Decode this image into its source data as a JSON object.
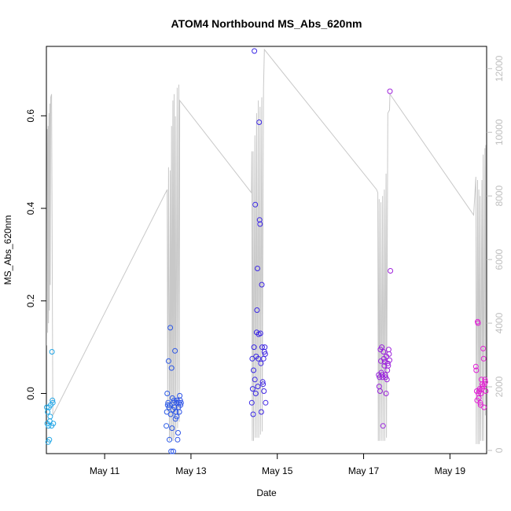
{
  "chart_data": {
    "type": "scatter",
    "title": "ATOM4 Northbound MS_Abs_620nm",
    "xlabel": "Date",
    "ylabel": "MS_Abs_620nm",
    "x_unit": "day of May",
    "xlim": [
      9.65,
      19.85
    ],
    "ylim": [
      -0.13,
      0.75
    ],
    "x_ticks": [
      {
        "value": 11,
        "label": "May 11"
      },
      {
        "value": 13,
        "label": "May 13"
      },
      {
        "value": 15,
        "label": "May 15"
      },
      {
        "value": 17,
        "label": "May 17"
      },
      {
        "value": 19,
        "label": "May 19"
      }
    ],
    "y_ticks": [
      0.0,
      0.2,
      0.4,
      0.6
    ],
    "y2_ticks": [
      0,
      2000,
      4000,
      6000,
      8000,
      10000,
      12000
    ],
    "y2_range": [
      -100,
      12700
    ],
    "grid": false,
    "legend": "none",
    "point_color_start": "#1fa8e6",
    "point_color_end": "#e61fd4",
    "line_color": "#c8c8c8",
    "series": [
      {
        "values": [
          [
            9.66,
            -0.03
          ],
          [
            9.67,
            -0.065
          ],
          [
            9.68,
            -0.04
          ],
          [
            9.69,
            -0.105
          ],
          [
            9.7,
            -0.07
          ],
          [
            9.71,
            -0.03
          ],
          [
            9.72,
            -0.1
          ],
          [
            9.73,
            -0.06
          ],
          [
            9.74,
            -0.05
          ],
          [
            9.75,
            -0.025
          ],
          [
            9.77,
            -0.07
          ],
          [
            9.79,
            -0.015
          ],
          [
            9.8,
            -0.02
          ],
          [
            9.81,
            -0.065
          ],
          [
            9.78,
            0.09
          ],
          [
            12.43,
            -0.07
          ],
          [
            12.44,
            -0.04
          ],
          [
            12.45,
            0.0
          ],
          [
            12.46,
            -0.025
          ],
          [
            12.47,
            -0.02
          ],
          [
            12.48,
            0.07
          ],
          [
            12.49,
            -0.03
          ],
          [
            12.5,
            -0.1
          ],
          [
            12.51,
            -0.025
          ],
          [
            12.52,
            0.142
          ],
          [
            12.53,
            -0.045
          ],
          [
            12.54,
            -0.125
          ],
          [
            12.55,
            0.055
          ],
          [
            12.56,
            -0.075
          ],
          [
            12.57,
            -0.01
          ],
          [
            12.58,
            -0.035
          ],
          [
            12.59,
            -0.125
          ],
          [
            12.6,
            -0.02
          ],
          [
            12.61,
            -0.015
          ],
          [
            12.62,
            -0.03
          ],
          [
            12.63,
            0.092
          ],
          [
            12.64,
            -0.055
          ],
          [
            12.65,
            -0.04
          ],
          [
            12.66,
            -0.02
          ],
          [
            12.67,
            -0.05
          ],
          [
            12.68,
            -0.015
          ],
          [
            12.69,
            -0.1
          ],
          [
            12.7,
            -0.085
          ],
          [
            12.71,
            -0.03
          ],
          [
            12.72,
            -0.02
          ],
          [
            12.73,
            -0.04
          ],
          [
            12.74,
            -0.005
          ],
          [
            12.75,
            -0.015
          ],
          [
            12.76,
            -0.025
          ],
          [
            12.77,
            -0.02
          ],
          [
            14.41,
            -0.02
          ],
          [
            14.42,
            0.075
          ],
          [
            14.43,
            0.01
          ],
          [
            14.44,
            -0.045
          ],
          [
            14.45,
            0.05
          ],
          [
            14.46,
            0.1
          ],
          [
            14.47,
            0.74
          ],
          [
            14.48,
            0.03
          ],
          [
            14.49,
            0.408
          ],
          [
            14.5,
            0.0
          ],
          [
            14.51,
            0.08
          ],
          [
            14.52,
            0.132
          ],
          [
            14.53,
            0.18
          ],
          [
            14.54,
            0.27
          ],
          [
            14.55,
            0.015
          ],
          [
            14.56,
            0.075
          ],
          [
            14.57,
            0.128
          ],
          [
            14.58,
            0.586
          ],
          [
            14.59,
            0.375
          ],
          [
            14.6,
            0.366
          ],
          [
            14.61,
            0.13
          ],
          [
            14.62,
            0.065
          ],
          [
            14.63,
            -0.04
          ],
          [
            14.64,
            0.235
          ],
          [
            14.65,
            0.1
          ],
          [
            14.66,
            0.025
          ],
          [
            14.67,
            0.02
          ],
          [
            14.68,
            0.075
          ],
          [
            14.69,
            0.005
          ],
          [
            14.7,
            0.09
          ],
          [
            14.71,
            0.1
          ],
          [
            14.72,
            0.085
          ],
          [
            14.73,
            -0.02
          ],
          [
            17.35,
            0.04
          ],
          [
            17.36,
            0.015
          ],
          [
            17.37,
            0.035
          ],
          [
            17.38,
            0.005
          ],
          [
            17.39,
            0.095
          ],
          [
            17.4,
            0.07
          ],
          [
            17.41,
            0.045
          ],
          [
            17.42,
            0.1
          ],
          [
            17.43,
            0.04
          ],
          [
            17.44,
            0.035
          ],
          [
            17.45,
            -0.07
          ],
          [
            17.46,
            0.09
          ],
          [
            17.47,
            0.075
          ],
          [
            17.48,
            0.06
          ],
          [
            17.49,
            0.068
          ],
          [
            17.5,
            0.04
          ],
          [
            17.51,
            0.035
          ],
          [
            17.52,
            0.0
          ],
          [
            17.53,
            0.08
          ],
          [
            17.54,
            0.03
          ],
          [
            17.55,
            0.05
          ],
          [
            17.56,
            0.065
          ],
          [
            17.57,
            0.06
          ],
          [
            17.58,
            0.095
          ],
          [
            17.59,
            0.085
          ],
          [
            17.6,
            0.072
          ],
          [
            17.61,
            0.653
          ],
          [
            17.62,
            0.265
          ],
          [
            19.6,
            0.058
          ],
          [
            19.61,
            0.05
          ],
          [
            19.62,
            0.005
          ],
          [
            19.63,
            -0.015
          ],
          [
            19.64,
            0.155
          ],
          [
            19.65,
            0.152
          ],
          [
            19.66,
            0.0
          ],
          [
            19.67,
            -0.01
          ],
          [
            19.68,
            0.005
          ],
          [
            19.69,
            0.01
          ],
          [
            19.7,
            -0.02
          ],
          [
            19.71,
            -0.025
          ],
          [
            19.72,
            0.0
          ],
          [
            19.73,
            0.03
          ],
          [
            19.74,
            0.01
          ],
          [
            19.75,
            0.02
          ],
          [
            19.76,
            0.015
          ],
          [
            19.77,
            0.097
          ],
          [
            19.78,
            0.075
          ],
          [
            19.79,
            -0.03
          ],
          [
            19.8,
            0.02
          ],
          [
            19.81,
            0.03
          ],
          [
            19.82,
            0.025
          ],
          [
            19.83,
            0.005
          ]
        ]
      },
      {
        "axis": "right",
        "values": [
          [
            9.66,
            3300
          ],
          [
            9.67,
            10100
          ],
          [
            9.68,
            3700
          ],
          [
            9.69,
            10200
          ],
          [
            9.7,
            4000
          ],
          [
            9.71,
            10600
          ],
          [
            9.72,
            4400
          ],
          [
            9.73,
            10900
          ],
          [
            9.74,
            5200
          ],
          [
            9.75,
            11100
          ],
          [
            9.77,
            11200
          ],
          [
            9.8,
            1100
          ],
          [
            12.45,
            8200
          ],
          [
            12.46,
            1200
          ],
          [
            12.48,
            8900
          ],
          [
            12.5,
            300
          ],
          [
            12.52,
            8800
          ],
          [
            12.53,
            400
          ],
          [
            12.55,
            10200
          ],
          [
            12.56,
            300
          ],
          [
            12.58,
            11000
          ],
          [
            12.59,
            300
          ],
          [
            12.61,
            11200
          ],
          [
            12.62,
            400
          ],
          [
            12.64,
            10500
          ],
          [
            12.65,
            600
          ],
          [
            12.68,
            11400
          ],
          [
            12.69,
            700
          ],
          [
            12.72,
            11500
          ],
          [
            12.73,
            900
          ],
          [
            12.74,
            11000
          ],
          [
            14.4,
            8100
          ],
          [
            14.41,
            9400
          ],
          [
            14.42,
            300
          ],
          [
            14.44,
            9400
          ],
          [
            14.45,
            300
          ],
          [
            14.48,
            9900
          ],
          [
            14.49,
            400
          ],
          [
            14.52,
            10600
          ],
          [
            14.53,
            400
          ],
          [
            14.56,
            11000
          ],
          [
            14.57,
            400
          ],
          [
            14.6,
            10800
          ],
          [
            14.61,
            500
          ],
          [
            14.64,
            11100
          ],
          [
            14.65,
            600
          ],
          [
            14.68,
            11400
          ],
          [
            14.7,
            12600
          ],
          [
            17.3,
            8200
          ],
          [
            17.33,
            8100
          ],
          [
            17.34,
            300
          ],
          [
            17.36,
            7900
          ],
          [
            17.37,
            300
          ],
          [
            17.4,
            7800
          ],
          [
            17.41,
            300
          ],
          [
            17.44,
            8000
          ],
          [
            17.45,
            300
          ],
          [
            17.48,
            8200
          ],
          [
            17.49,
            300
          ],
          [
            17.52,
            8700
          ],
          [
            17.53,
            400
          ],
          [
            17.56,
            10600
          ],
          [
            17.6,
            10700
          ],
          [
            17.61,
            11200
          ],
          [
            19.55,
            7400
          ],
          [
            19.6,
            8600
          ],
          [
            19.61,
            200
          ],
          [
            19.64,
            8500
          ],
          [
            19.65,
            200
          ],
          [
            19.67,
            8200
          ],
          [
            19.68,
            200
          ],
          [
            19.7,
            8000
          ],
          [
            19.71,
            300
          ],
          [
            19.74,
            8500
          ],
          [
            19.75,
            300
          ],
          [
            19.77,
            9300
          ],
          [
            19.78,
            300
          ],
          [
            19.81,
            9500
          ],
          [
            19.82,
            1100
          ],
          [
            19.83,
            9600
          ]
        ]
      }
    ]
  }
}
